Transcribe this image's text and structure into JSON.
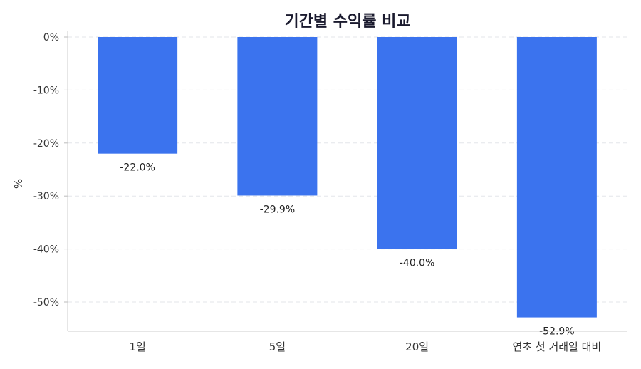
{
  "chart_data": {
    "type": "bar",
    "title": "기간별 수익률 비교",
    "xlabel": "",
    "ylabel": "%",
    "categories": [
      "1일",
      "5일",
      "20일",
      "연초 첫 거래일 대비"
    ],
    "values": [
      -22.0,
      -29.9,
      -40.0,
      -52.9
    ],
    "data_labels": [
      "-22.0%",
      "-29.9%",
      "-40.0%",
      "-52.9%"
    ],
    "yticks": [
      0,
      -10,
      -20,
      -30,
      -40,
      -50
    ],
    "ytick_labels": [
      "0%",
      "-10%",
      "-20%",
      "-30%",
      "-40%",
      "-50%"
    ],
    "ylim": [
      -55.5,
      0
    ],
    "grid": true,
    "bar_color": "#3b73ee"
  }
}
